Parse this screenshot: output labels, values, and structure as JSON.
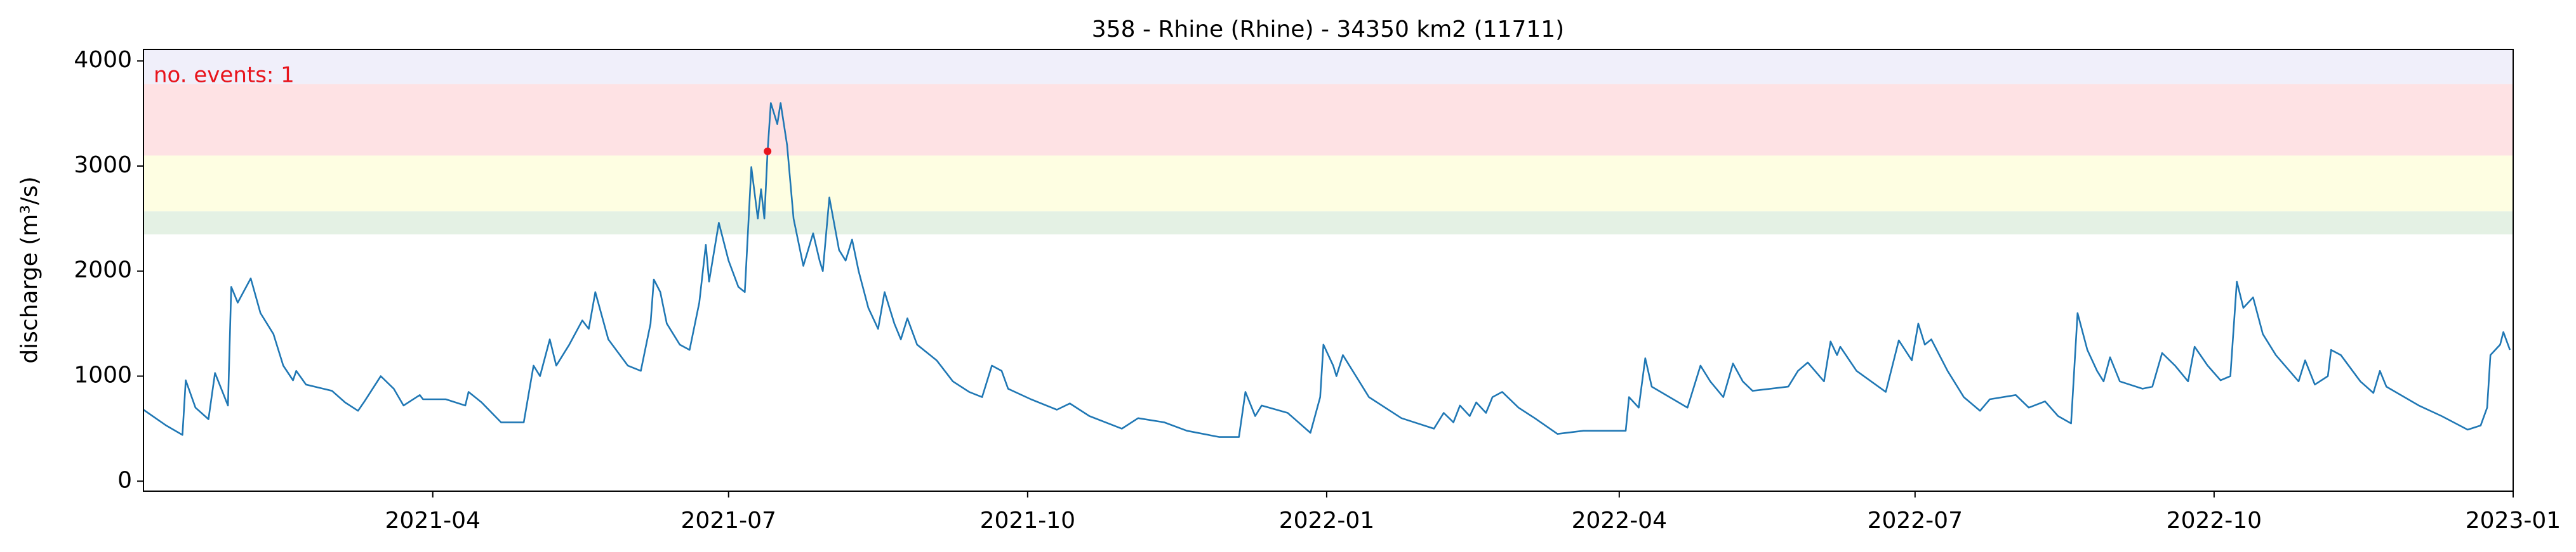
{
  "chart_data": {
    "type": "line",
    "title": "358 - Rhine (Rhine) - 34350 km2 (11711)",
    "ylabel": "discharge (m³/s)",
    "annotation": "no. events: 1",
    "annotation_color": "#e8141c",
    "xlim": [
      "2021-01-02",
      "2023-01-01"
    ],
    "xticks": [
      "2021-04",
      "2021-07",
      "2021-10",
      "2022-01",
      "2022-04",
      "2022-07",
      "2022-10",
      "2023-01"
    ],
    "ylim": [
      -95,
      4110
    ],
    "yticks": [
      0,
      1000,
      2000,
      3000,
      4000
    ],
    "thresholds": [
      {
        "lower": 2350,
        "upper": 2570,
        "color": "#e4f1e4"
      },
      {
        "lower": 2570,
        "upper": 3100,
        "color": "#fefee2"
      },
      {
        "lower": 3100,
        "upper": 3780,
        "color": "#fee2e4"
      },
      {
        "lower": 3780,
        "upper": 4110,
        "color": "#f0effa"
      }
    ],
    "events": {
      "x": [
        "2021-07-13"
      ],
      "values": [
        3140
      ],
      "color": "#e8141c"
    },
    "x": [
      "2021-01-02",
      "2021-01-09",
      "2021-01-14",
      "2021-01-15",
      "2021-01-18",
      "2021-01-22",
      "2021-01-24",
      "2021-01-28",
      "2021-01-29",
      "2021-01-31",
      "2021-02-04",
      "2021-02-07",
      "2021-02-11",
      "2021-02-14",
      "2021-02-17",
      "2021-02-18",
      "2021-02-21",
      "2021-03-01",
      "2021-03-05",
      "2021-03-09",
      "2021-03-11",
      "2021-03-16",
      "2021-03-20",
      "2021-03-23",
      "2021-03-28",
      "2021-03-29",
      "2021-04-05",
      "2021-04-11",
      "2021-04-12",
      "2021-04-16",
      "2021-04-22",
      "2021-04-29",
      "2021-05-02",
      "2021-05-04",
      "2021-05-07",
      "2021-05-09",
      "2021-05-13",
      "2021-05-17",
      "2021-05-19",
      "2021-05-21",
      "2021-05-25",
      "2021-05-31",
      "2021-06-04",
      "2021-06-07",
      "2021-06-08",
      "2021-06-10",
      "2021-06-12",
      "2021-06-16",
      "2021-06-19",
      "2021-06-22",
      "2021-06-24",
      "2021-06-25",
      "2021-06-28",
      "2021-07-01",
      "2021-07-04",
      "2021-07-06",
      "2021-07-08",
      "2021-07-10",
      "2021-07-11",
      "2021-07-12",
      "2021-07-13",
      "2021-07-14",
      "2021-07-16",
      "2021-07-17",
      "2021-07-19",
      "2021-07-21",
      "2021-07-24",
      "2021-07-27",
      "2021-07-29",
      "2021-07-30",
      "2021-08-01",
      "2021-08-04",
      "2021-08-06",
      "2021-08-08",
      "2021-08-10",
      "2021-08-13",
      "2021-08-16",
      "2021-08-18",
      "2021-08-21",
      "2021-08-23",
      "2021-08-25",
      "2021-08-28",
      "2021-09-03",
      "2021-09-08",
      "2021-09-13",
      "2021-09-17",
      "2021-09-20",
      "2021-09-23",
      "2021-09-25",
      "2021-10-02",
      "2021-10-10",
      "2021-10-14",
      "2021-10-20",
      "2021-10-30",
      "2021-11-04",
      "2021-11-12",
      "2021-11-19",
      "2021-11-29",
      "2021-12-05",
      "2021-12-07",
      "2021-12-10",
      "2021-12-12",
      "2021-12-20",
      "2021-12-27",
      "2021-12-30",
      "2021-12-31",
      "2022-01-03",
      "2022-01-04",
      "2022-01-06",
      "2022-01-09",
      "2022-01-14",
      "2022-01-24",
      "2022-02-03",
      "2022-02-06",
      "2022-02-09",
      "2022-02-11",
      "2022-02-14",
      "2022-02-16",
      "2022-02-19",
      "2022-02-21",
      "2022-02-24",
      "2022-03-01",
      "2022-03-06",
      "2022-03-13",
      "2022-03-21",
      "2022-04-03",
      "2022-04-04",
      "2022-04-07",
      "2022-04-09",
      "2022-04-11",
      "2022-04-22",
      "2022-04-26",
      "2022-04-29",
      "2022-05-03",
      "2022-05-06",
      "2022-05-09",
      "2022-05-12",
      "2022-05-23",
      "2022-05-26",
      "2022-05-29",
      "2022-06-03",
      "2022-06-05",
      "2022-06-07",
      "2022-06-08",
      "2022-06-13",
      "2022-06-22",
      "2022-06-26",
      "2022-06-30",
      "2022-07-02",
      "2022-07-04",
      "2022-07-06",
      "2022-07-11",
      "2022-07-16",
      "2022-07-21",
      "2022-07-24",
      "2022-08-01",
      "2022-08-05",
      "2022-08-10",
      "2022-08-14",
      "2022-08-18",
      "2022-08-20",
      "2022-08-23",
      "2022-08-26",
      "2022-08-28",
      "2022-08-30",
      "2022-09-02",
      "2022-09-09",
      "2022-09-12",
      "2022-09-15",
      "2022-09-19",
      "2022-09-23",
      "2022-09-25",
      "2022-09-29",
      "2022-10-03",
      "2022-10-06",
      "2022-10-08",
      "2022-10-10",
      "2022-10-13",
      "2022-10-16",
      "2022-10-20",
      "2022-10-27",
      "2022-10-29",
      "2022-11-01",
      "2022-11-05",
      "2022-11-06",
      "2022-11-09",
      "2022-11-15",
      "2022-11-19",
      "2022-11-21",
      "2022-11-23",
      "2022-12-03",
      "2022-12-10",
      "2022-12-18",
      "2022-12-22",
      "2022-12-24",
      "2022-12-25",
      "2022-12-28",
      "2022-12-29",
      "2022-12-31"
    ],
    "series": [
      {
        "name": "discharge",
        "color": "#1f77b4",
        "values": [
          680,
          530,
          440,
          960,
          700,
          590,
          1030,
          720,
          1850,
          1700,
          1930,
          1600,
          1400,
          1100,
          960,
          1050,
          920,
          860,
          750,
          670,
          760,
          1000,
          880,
          720,
          820,
          780,
          780,
          720,
          850,
          750,
          560,
          560,
          1100,
          1000,
          1350,
          1100,
          1300,
          1530,
          1450,
          1800,
          1350,
          1100,
          1050,
          1500,
          1920,
          1800,
          1500,
          1300,
          1250,
          1700,
          2250,
          1900,
          2460,
          2100,
          1850,
          1800,
          2990,
          2500,
          2780,
          2500,
          3140,
          3600,
          3400,
          3600,
          3200,
          2500,
          2050,
          2360,
          2100,
          2000,
          2700,
          2200,
          2100,
          2300,
          2000,
          1650,
          1450,
          1800,
          1500,
          1350,
          1550,
          1300,
          1150,
          950,
          850,
          800,
          1100,
          1050,
          880,
          780,
          680,
          740,
          620,
          500,
          600,
          560,
          480,
          420,
          420,
          850,
          620,
          720,
          650,
          460,
          800,
          1300,
          1100,
          1000,
          1200,
          1050,
          800,
          600,
          500,
          650,
          560,
          720,
          620,
          750,
          650,
          800,
          850,
          700,
          600,
          450,
          480,
          480,
          800,
          700,
          1170,
          900,
          700,
          1100,
          950,
          800,
          1120,
          950,
          860,
          900,
          1050,
          1130,
          950,
          1330,
          1200,
          1280,
          1050,
          850,
          1340,
          1150,
          1500,
          1300,
          1350,
          1050,
          800,
          670,
          780,
          820,
          700,
          760,
          620,
          550,
          1600,
          1250,
          1050,
          950,
          1180,
          950,
          880,
          900,
          1220,
          1100,
          950,
          1280,
          1100,
          960,
          1000,
          1900,
          1650,
          1750,
          1400,
          1200,
          950,
          1150,
          920,
          1000,
          1250,
          1200,
          950,
          840,
          1050,
          900,
          720,
          620,
          490,
          530,
          700,
          1200,
          1300,
          1420,
          1250
        ]
      }
    ]
  }
}
